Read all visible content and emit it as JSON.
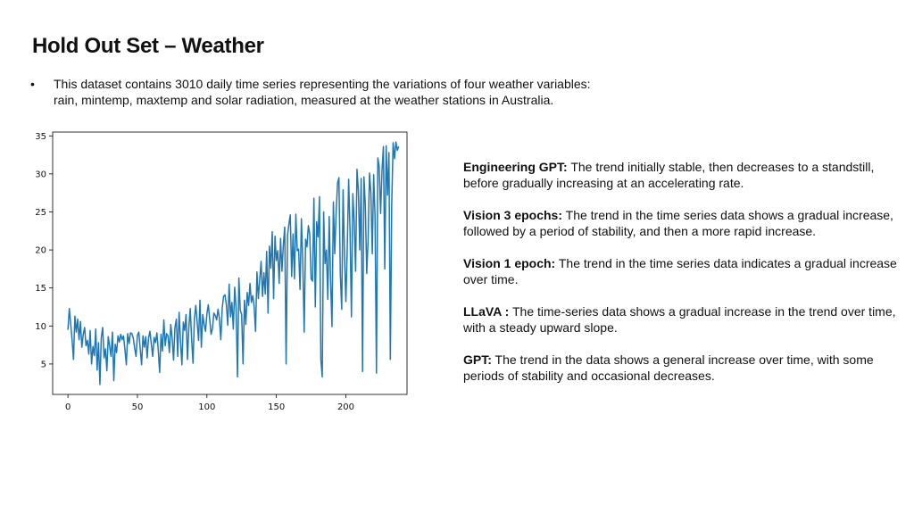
{
  "slide": {
    "title": "Hold Out Set – Weather",
    "bullet_marker": "•",
    "bullet": "This dataset contains 3010 daily time series representing the variations of four weather variables: rain, mintemp, maxtemp and solar radiation, measured at the weather stations in Australia."
  },
  "comments": [
    {
      "model": "Engineering GPT:",
      "text": " The trend initially stable, then decreases to a standstill, before gradually increasing at an accelerating rate."
    },
    {
      "model": "Vision 3 epochs:",
      "text": " The trend in the time series data shows a gradual increase, followed by a period of stability, and then a more rapid increase."
    },
    {
      "model": "Vision 1 epoch:",
      "text": " The trend in the time series data indicates a gradual increase over time."
    },
    {
      "model": "LLaVA :",
      "text": " The time-series data shows a gradual increase in the trend over time, with a steady upward slope."
    },
    {
      "model": "GPT:",
      "text": " The trend in the data shows a general increase over time, with some periods of stability and occasional decreases."
    }
  ],
  "chart_data": {
    "type": "line",
    "title": "",
    "xlabel": "",
    "ylabel": "",
    "xlim": [
      -11,
      244
    ],
    "ylim": [
      1.0,
      35.5
    ],
    "xticks": [
      0,
      50,
      100,
      150,
      200
    ],
    "yticks": [
      5,
      10,
      15,
      20,
      25,
      30,
      35
    ],
    "grid": false,
    "line_color": "#1f77b4",
    "series": [
      {
        "values": [
          9.5,
          12.3,
          10.2,
          8.1,
          5.6,
          11.3,
          9.2,
          10.9,
          8.2,
          10.6,
          7.2,
          8.9,
          9.8,
          7.4,
          8.1,
          6.3,
          9.4,
          5.0,
          7.3,
          6.1,
          9.6,
          4.2,
          7.8,
          2.3,
          8.5,
          9.8,
          5.8,
          7.0,
          4.1,
          8.6,
          7.3,
          6.0,
          9.2,
          2.8,
          7.6,
          6.5,
          8.7,
          7.9,
          8.9,
          8.2,
          8.7,
          6.9,
          4.9,
          9.0,
          7.7,
          9.1,
          9.0,
          8.4,
          7.1,
          6.0,
          8.8,
          9.2,
          7.0,
          4.9,
          8.7,
          7.2,
          8.6,
          5.8,
          8.4,
          9.3,
          7.6,
          6.0,
          8.5,
          7.8,
          9.1,
          6.8,
          3.9,
          8.9,
          6.7,
          10.8,
          7.4,
          9.0,
          8.7,
          6.5,
          10.2,
          8.4,
          5.5,
          9.8,
          10.9,
          6.0,
          11.8,
          8.0,
          4.9,
          10.5,
          9.4,
          11.5,
          5.6,
          9.8,
          12.3,
          8.3,
          5.1,
          11.0,
          12.7,
          10.5,
          8.1,
          13.4,
          7.2,
          11.5,
          10.2,
          9.3,
          11.6,
          12.8,
          10.9,
          8.9,
          9.7,
          11.7,
          11.4,
          10.8,
          12.2,
          11.0,
          8.2,
          12.3,
          13.9,
          14.1,
          12.8,
          10.1,
          15.5,
          11.2,
          13.1,
          9.6,
          15.1,
          12.3,
          3.3,
          16.3,
          12.1,
          11.5,
          5.0,
          13.4,
          10.2,
          14.4,
          12.7,
          15.6,
          13.1,
          14.0,
          12.5,
          9.3,
          17.1,
          13.6,
          16.1,
          18.5,
          13.9,
          17.0,
          14.2,
          19.8,
          11.7,
          20.5,
          17.6,
          22.4,
          13.6,
          21.8,
          18.6,
          19.9,
          15.6,
          21.5,
          17.2,
          20.7,
          23.0,
          5.0,
          21.9,
          23.4,
          24.6,
          16.5,
          22.1,
          16.2,
          24.7,
          19.9,
          20.1,
          14.8,
          24.1,
          18.3,
          9.2,
          21.4,
          20.4,
          23.2,
          22.1,
          16.2,
          15.9,
          26.8,
          12.5,
          23.7,
          21.7,
          27.0,
          5.6,
          3.3,
          25.0,
          18.2,
          20.0,
          13.5,
          24.4,
          16.0,
          9.9,
          26.3,
          19.5,
          24.9,
          28.8,
          29.5,
          16.8,
          12.2,
          27.9,
          19.3,
          13.2,
          20.2,
          29.3,
          22.5,
          11.2,
          27.4,
          23.7,
          17.2,
          30.6,
          27.8,
          20.0,
          29.4,
          4.0,
          29.6,
          25.9,
          16.9,
          21.3,
          30.1,
          27.5,
          19.5,
          29.9,
          24.3,
          3.8,
          32.1,
          30.9,
          24.8,
          30.4,
          33.6,
          17.5,
          33.7,
          27.2,
          32.8,
          5.6,
          25.9,
          34.1,
          32.0,
          34.2,
          33.1,
          33.6
        ]
      }
    ]
  }
}
